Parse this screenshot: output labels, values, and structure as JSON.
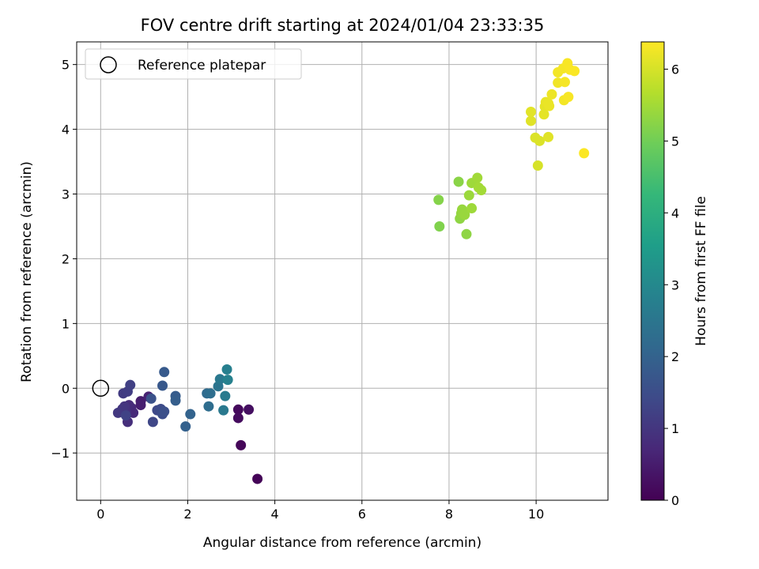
{
  "chart_data": {
    "type": "scatter",
    "title": "FOV centre drift starting at 2024/01/04 23:33:35",
    "xlabel": "Angular distance from reference (arcmin)",
    "ylabel": "Rotation from reference (arcmin)",
    "xlim": [
      -0.55,
      11.65
    ],
    "ylim": [
      -1.73,
      5.35
    ],
    "xticks": [
      0,
      2,
      4,
      6,
      8,
      10
    ],
    "xtick_labels": [
      "0",
      "2",
      "4",
      "6",
      "8",
      "10"
    ],
    "yticks": [
      -1,
      0,
      1,
      2,
      3,
      4,
      5
    ],
    "ytick_labels": [
      "−1",
      "0",
      "1",
      "2",
      "3",
      "4",
      "5"
    ],
    "grid": true,
    "legend": {
      "placement": "top-left",
      "entries": [
        "Reference platepar"
      ]
    },
    "reference_point": {
      "x": 0,
      "y": 0,
      "label": "Reference platepar"
    },
    "colorbar": {
      "label": "Hours from first FF file",
      "range": [
        0,
        6.38
      ],
      "ticks": [
        0,
        1,
        2,
        3,
        4,
        5,
        6
      ],
      "tick_labels": [
        "0",
        "1",
        "2",
        "3",
        "4",
        "5",
        "6"
      ],
      "colormap": "viridis"
    },
    "points": [
      {
        "x": 3.6,
        "y": -1.4,
        "c": 0.05
      },
      {
        "x": 3.22,
        "y": -0.88,
        "c": 0.1
      },
      {
        "x": 3.16,
        "y": -0.33,
        "c": 0.15
      },
      {
        "x": 3.16,
        "y": -0.46,
        "c": 0.2
      },
      {
        "x": 3.4,
        "y": -0.33,
        "c": 0.25
      },
      {
        "x": 0.92,
        "y": -0.2,
        "c": 0.5
      },
      {
        "x": 0.92,
        "y": -0.26,
        "c": 0.55
      },
      {
        "x": 1.1,
        "y": -0.13,
        "c": 0.6
      },
      {
        "x": 0.7,
        "y": -0.3,
        "c": 0.7
      },
      {
        "x": 0.75,
        "y": -0.38,
        "c": 0.75
      },
      {
        "x": 0.65,
        "y": -0.26,
        "c": 0.8
      },
      {
        "x": 0.62,
        "y": -0.52,
        "c": 0.85
      },
      {
        "x": 0.58,
        "y": -0.36,
        "c": 0.9
      },
      {
        "x": 0.55,
        "y": -0.28,
        "c": 0.95
      },
      {
        "x": 0.5,
        "y": -0.32,
        "c": 1.0
      },
      {
        "x": 0.4,
        "y": -0.38,
        "c": 1.05
      },
      {
        "x": 0.52,
        "y": -0.08,
        "c": 1.1
      },
      {
        "x": 0.62,
        "y": -0.05,
        "c": 1.15
      },
      {
        "x": 0.68,
        "y": 0.05,
        "c": 1.2
      },
      {
        "x": 0.58,
        "y": -0.42,
        "c": 1.25
      },
      {
        "x": 1.2,
        "y": -0.52,
        "c": 1.35
      },
      {
        "x": 1.3,
        "y": -0.34,
        "c": 1.4
      },
      {
        "x": 1.38,
        "y": -0.32,
        "c": 1.45
      },
      {
        "x": 1.42,
        "y": -0.4,
        "c": 1.5
      },
      {
        "x": 1.46,
        "y": -0.36,
        "c": 1.55
      },
      {
        "x": 1.16,
        "y": -0.16,
        "c": 1.6
      },
      {
        "x": 1.42,
        "y": 0.04,
        "c": 1.75
      },
      {
        "x": 1.46,
        "y": 0.25,
        "c": 1.8
      },
      {
        "x": 1.72,
        "y": -0.12,
        "c": 1.85
      },
      {
        "x": 1.72,
        "y": -0.19,
        "c": 1.9
      },
      {
        "x": 1.95,
        "y": -0.59,
        "c": 1.95
      },
      {
        "x": 2.06,
        "y": -0.4,
        "c": 2.0
      },
      {
        "x": 2.44,
        "y": -0.08,
        "c": 2.2
      },
      {
        "x": 2.48,
        "y": -0.28,
        "c": 2.25
      },
      {
        "x": 2.52,
        "y": -0.08,
        "c": 2.3
      },
      {
        "x": 2.7,
        "y": 0.03,
        "c": 2.45
      },
      {
        "x": 2.74,
        "y": 0.14,
        "c": 2.55
      },
      {
        "x": 2.82,
        "y": -0.34,
        "c": 2.6
      },
      {
        "x": 2.86,
        "y": -0.12,
        "c": 2.65
      },
      {
        "x": 2.9,
        "y": 0.29,
        "c": 2.75
      },
      {
        "x": 2.92,
        "y": 0.13,
        "c": 2.8
      },
      {
        "x": 7.78,
        "y": 2.5,
        "c": 5.15
      },
      {
        "x": 7.76,
        "y": 2.91,
        "c": 5.2
      },
      {
        "x": 8.22,
        "y": 3.19,
        "c": 5.25
      },
      {
        "x": 8.25,
        "y": 2.62,
        "c": 5.3
      },
      {
        "x": 8.28,
        "y": 2.7,
        "c": 5.35
      },
      {
        "x": 8.3,
        "y": 2.76,
        "c": 5.38
      },
      {
        "x": 8.36,
        "y": 2.68,
        "c": 5.4
      },
      {
        "x": 8.4,
        "y": 2.38,
        "c": 5.3
      },
      {
        "x": 8.46,
        "y": 2.98,
        "c": 5.42
      },
      {
        "x": 8.52,
        "y": 3.17,
        "c": 5.45
      },
      {
        "x": 8.52,
        "y": 2.78,
        "c": 5.45
      },
      {
        "x": 8.65,
        "y": 3.25,
        "c": 5.48
      },
      {
        "x": 8.68,
        "y": 3.1,
        "c": 5.5
      },
      {
        "x": 8.74,
        "y": 3.06,
        "c": 5.5
      },
      {
        "x": 10.04,
        "y": 3.44,
        "c": 6.0
      },
      {
        "x": 10.08,
        "y": 3.82,
        "c": 6.05
      },
      {
        "x": 9.98,
        "y": 3.87,
        "c": 6.05
      },
      {
        "x": 10.28,
        "y": 3.88,
        "c": 6.1
      },
      {
        "x": 9.88,
        "y": 4.13,
        "c": 6.1
      },
      {
        "x": 9.88,
        "y": 4.27,
        "c": 6.12
      },
      {
        "x": 10.18,
        "y": 4.23,
        "c": 6.15
      },
      {
        "x": 10.2,
        "y": 4.35,
        "c": 6.15
      },
      {
        "x": 10.22,
        "y": 4.42,
        "c": 6.18
      },
      {
        "x": 10.28,
        "y": 4.4,
        "c": 6.2
      },
      {
        "x": 10.3,
        "y": 4.36,
        "c": 6.2
      },
      {
        "x": 10.36,
        "y": 4.54,
        "c": 6.22
      },
      {
        "x": 10.5,
        "y": 4.72,
        "c": 6.25
      },
      {
        "x": 10.5,
        "y": 4.88,
        "c": 6.28
      },
      {
        "x": 10.62,
        "y": 4.94,
        "c": 6.3
      },
      {
        "x": 10.64,
        "y": 4.45,
        "c": 6.28
      },
      {
        "x": 10.66,
        "y": 4.73,
        "c": 6.3
      },
      {
        "x": 10.72,
        "y": 5.02,
        "c": 6.33
      },
      {
        "x": 10.74,
        "y": 4.5,
        "c": 6.32
      },
      {
        "x": 10.78,
        "y": 4.92,
        "c": 6.34
      },
      {
        "x": 10.88,
        "y": 4.9,
        "c": 6.35
      },
      {
        "x": 11.1,
        "y": 3.63,
        "c": 6.36
      }
    ]
  }
}
